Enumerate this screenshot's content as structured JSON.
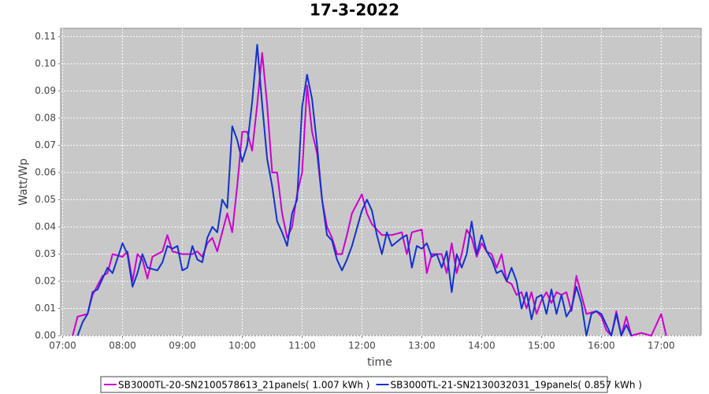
{
  "chart_data": {
    "type": "line",
    "title": "17-3-2022",
    "x_label": "time",
    "y_label": "Watt/Wp",
    "xlim": [
      "06:58",
      "17:40"
    ],
    "xticks": [
      "07:00",
      "08:00",
      "09:00",
      "10:00",
      "11:00",
      "12:00",
      "13:00",
      "14:00",
      "15:00",
      "16:00",
      "17:00"
    ],
    "ylim": [
      0,
      0.113
    ],
    "yticks": [
      {
        "value": 0,
        "label": "0.00"
      },
      {
        "value": 0.01,
        "label": "0.01"
      },
      {
        "value": 0.02,
        "label": "0.02"
      },
      {
        "value": 0.03,
        "label": "0.03"
      },
      {
        "value": 0.04,
        "label": "0.04"
      },
      {
        "value": 0.05,
        "label": "0.05"
      },
      {
        "value": 0.06,
        "label": "0.06"
      },
      {
        "value": 0.07,
        "label": "0.07"
      },
      {
        "value": 0.08,
        "label": "0.08"
      },
      {
        "value": 0.09,
        "label": "0.09"
      },
      {
        "value": 0.1,
        "label": "0.10"
      },
      {
        "value": 0.11,
        "label": "0.11"
      }
    ],
    "grid": true,
    "legend": "bottom",
    "series": [
      {
        "name": "SB3000TL-20-SN2100578613_21panels( 1.007 kWh )",
        "color": "#cc00cc",
        "x": [
          "07:10",
          "07:15",
          "07:25",
          "07:30",
          "07:40",
          "07:45",
          "07:50",
          "08:00",
          "08:05",
          "08:10",
          "08:15",
          "08:20",
          "08:25",
          "08:30",
          "08:40",
          "08:45",
          "08:50",
          "09:00",
          "09:10",
          "09:15",
          "09:20",
          "09:25",
          "09:30",
          "09:35",
          "09:40",
          "09:45",
          "09:50",
          "09:55",
          "10:00",
          "10:05",
          "10:10",
          "10:15",
          "10:20",
          "10:25",
          "10:30",
          "10:35",
          "10:40",
          "10:45",
          "10:50",
          "10:55",
          "11:00",
          "11:05",
          "11:10",
          "11:15",
          "11:20",
          "11:25",
          "11:30",
          "11:35",
          "11:40",
          "11:45",
          "11:50",
          "12:00",
          "12:05",
          "12:10",
          "12:20",
          "12:30",
          "12:40",
          "12:45",
          "12:50",
          "13:00",
          "13:05",
          "13:10",
          "13:20",
          "13:25",
          "13:30",
          "13:35",
          "13:40",
          "13:45",
          "13:50",
          "13:55",
          "14:00",
          "14:05",
          "14:10",
          "14:15",
          "14:20",
          "14:25",
          "14:30",
          "14:35",
          "14:40",
          "14:45",
          "14:50",
          "14:55",
          "15:00",
          "15:05",
          "15:10",
          "15:15",
          "15:20",
          "15:25",
          "15:30",
          "15:35",
          "15:40",
          "15:45",
          "15:55",
          "16:00",
          "16:05",
          "16:10",
          "16:15",
          "16:20",
          "16:25",
          "16:30",
          "16:40",
          "16:50",
          "17:00",
          "17:05"
        ],
        "values": [
          0.0,
          0.007,
          0.008,
          0.015,
          0.022,
          0.023,
          0.03,
          0.029,
          0.031,
          0.02,
          0.03,
          0.028,
          0.021,
          0.029,
          0.031,
          0.037,
          0.031,
          0.03,
          0.03,
          0.031,
          0.029,
          0.034,
          0.036,
          0.031,
          0.038,
          0.045,
          0.038,
          0.055,
          0.075,
          0.075,
          0.068,
          0.085,
          0.104,
          0.085,
          0.06,
          0.06,
          0.045,
          0.036,
          0.04,
          0.052,
          0.06,
          0.092,
          0.075,
          0.067,
          0.05,
          0.04,
          0.036,
          0.03,
          0.03,
          0.037,
          0.045,
          0.052,
          0.045,
          0.041,
          0.037,
          0.037,
          0.038,
          0.03,
          0.038,
          0.039,
          0.023,
          0.03,
          0.03,
          0.023,
          0.034,
          0.023,
          0.03,
          0.039,
          0.036,
          0.029,
          0.034,
          0.031,
          0.03,
          0.025,
          0.03,
          0.02,
          0.019,
          0.015,
          0.016,
          0.01,
          0.016,
          0.008,
          0.013,
          0.016,
          0.012,
          0.016,
          0.015,
          0.016,
          0.009,
          0.022,
          0.015,
          0.008,
          0.009,
          0.007,
          0.002,
          0.0,
          0.009,
          0.0,
          0.007,
          0.0,
          0.001,
          0.0,
          0.008,
          0.0
        ]
      },
      {
        "name": "SB3000TL-21-SN2130032031_19panels( 0.857 kWh )",
        "color": "#1133cc",
        "x": [
          "07:15",
          "07:20",
          "07:25",
          "07:30",
          "07:35",
          "07:45",
          "07:50",
          "08:00",
          "08:05",
          "08:10",
          "08:15",
          "08:20",
          "08:25",
          "08:35",
          "08:40",
          "08:45",
          "08:50",
          "08:55",
          "09:00",
          "09:05",
          "09:10",
          "09:15",
          "09:20",
          "09:25",
          "09:30",
          "09:35",
          "09:40",
          "09:45",
          "09:50",
          "09:55",
          "10:00",
          "10:05",
          "10:10",
          "10:15",
          "10:20",
          "10:25",
          "10:30",
          "10:35",
          "10:40",
          "10:45",
          "10:50",
          "10:55",
          "11:00",
          "11:05",
          "11:10",
          "11:15",
          "11:20",
          "11:25",
          "11:30",
          "11:35",
          "11:40",
          "11:45",
          "11:50",
          "12:00",
          "12:05",
          "12:10",
          "12:15",
          "12:20",
          "12:25",
          "12:30",
          "12:40",
          "12:45",
          "12:50",
          "12:55",
          "13:00",
          "13:05",
          "13:10",
          "13:15",
          "13:20",
          "13:25",
          "13:30",
          "13:35",
          "13:40",
          "13:45",
          "13:50",
          "13:55",
          "14:00",
          "14:05",
          "14:10",
          "14:15",
          "14:20",
          "14:25",
          "14:30",
          "14:35",
          "14:40",
          "14:45",
          "14:50",
          "14:55",
          "15:00",
          "15:05",
          "15:10",
          "15:15",
          "15:20",
          "15:25",
          "15:30",
          "15:35",
          "15:40",
          "15:45",
          "15:50",
          "15:55",
          "16:00",
          "16:05",
          "16:10",
          "16:15",
          "16:20",
          "16:25",
          "16:30"
        ],
        "values": [
          0.0,
          0.005,
          0.008,
          0.016,
          0.017,
          0.025,
          0.023,
          0.034,
          0.03,
          0.018,
          0.023,
          0.03,
          0.025,
          0.024,
          0.027,
          0.033,
          0.032,
          0.033,
          0.024,
          0.025,
          0.033,
          0.028,
          0.027,
          0.036,
          0.04,
          0.038,
          0.05,
          0.047,
          0.077,
          0.072,
          0.064,
          0.07,
          0.086,
          0.107,
          0.085,
          0.065,
          0.055,
          0.042,
          0.038,
          0.033,
          0.045,
          0.05,
          0.084,
          0.096,
          0.087,
          0.07,
          0.05,
          0.037,
          0.035,
          0.028,
          0.024,
          0.028,
          0.033,
          0.046,
          0.05,
          0.046,
          0.037,
          0.03,
          0.038,
          0.033,
          0.036,
          0.037,
          0.025,
          0.033,
          0.032,
          0.034,
          0.029,
          0.03,
          0.025,
          0.031,
          0.016,
          0.03,
          0.025,
          0.03,
          0.042,
          0.03,
          0.037,
          0.031,
          0.028,
          0.023,
          0.024,
          0.02,
          0.025,
          0.02,
          0.01,
          0.016,
          0.006,
          0.014,
          0.015,
          0.008,
          0.017,
          0.008,
          0.015,
          0.007,
          0.01,
          0.018,
          0.012,
          0.0,
          0.008,
          0.009,
          0.008,
          0.004,
          0.0,
          0.008,
          0.0,
          0.004,
          0.0
        ]
      }
    ]
  }
}
